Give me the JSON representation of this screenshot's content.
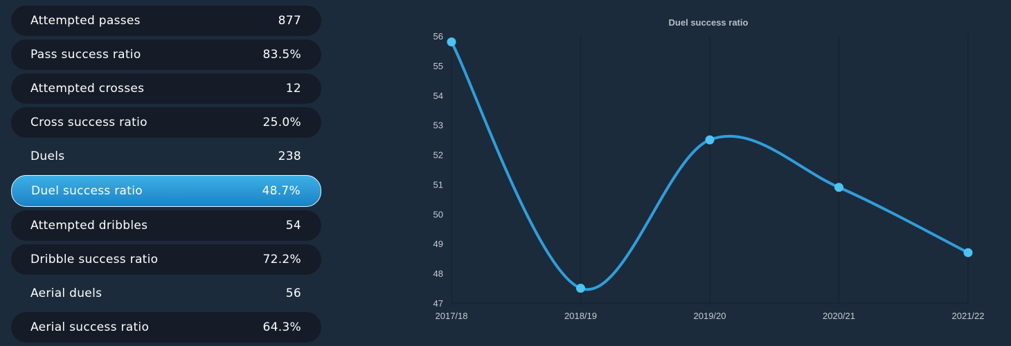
{
  "stats": [
    {
      "label": "Attempted passes",
      "value": "877",
      "style": "dark"
    },
    {
      "label": "Pass success ratio",
      "value": "83.5%",
      "style": "dark"
    },
    {
      "label": "Attempted crosses",
      "value": "12",
      "style": "dark"
    },
    {
      "label": "Cross success ratio",
      "value": "25.0%",
      "style": "dark"
    },
    {
      "label": "Duels",
      "value": "238",
      "style": "plain"
    },
    {
      "label": "Duel success ratio",
      "value": "48.7%",
      "style": "active"
    },
    {
      "label": "Attempted dribbles",
      "value": "54",
      "style": "dark"
    },
    {
      "label": "Dribble success ratio",
      "value": "72.2%",
      "style": "dark"
    },
    {
      "label": "Aerial duels",
      "value": "56",
      "style": "plain"
    },
    {
      "label": "Aerial success ratio",
      "value": "64.3%",
      "style": "dark"
    }
  ],
  "colors": {
    "background": "#1c2b3b",
    "row_dark": "#151c27",
    "active_row": "#2a9bd6",
    "line": "#2f9fdc",
    "marker": "#4cc3f5",
    "grid": "#15202c"
  },
  "chart_data": {
    "type": "line",
    "title": "Duel success ratio",
    "categories": [
      "2017/18",
      "2018/19",
      "2019/20",
      "2020/21",
      "2021/22"
    ],
    "series": [
      {
        "values": [
          55.8,
          47.5,
          52.5,
          50.9,
          48.7
        ]
      }
    ],
    "yticks": [
      47,
      48,
      49,
      50,
      51,
      52,
      53,
      54,
      55,
      56
    ],
    "ylim": [
      47,
      56
    ],
    "xlabel": "",
    "ylabel": "",
    "grid": "vertical",
    "smooth": true
  }
}
